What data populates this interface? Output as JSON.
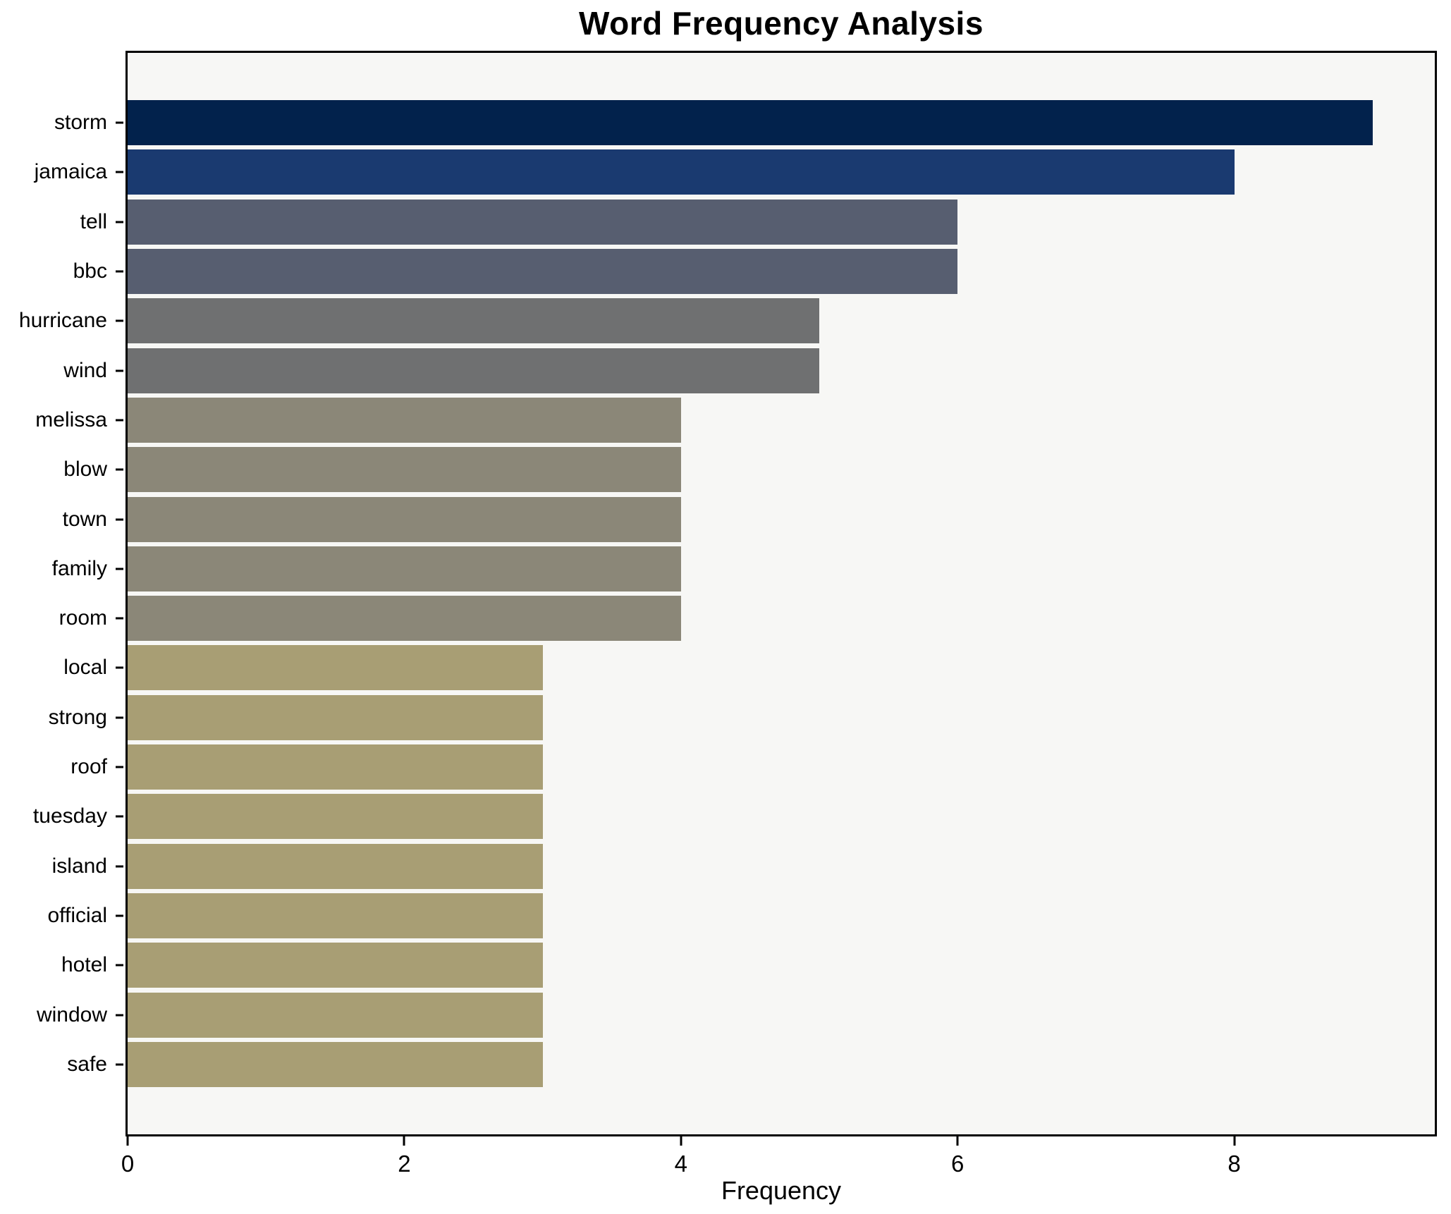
{
  "chart_data": {
    "type": "bar",
    "orientation": "horizontal",
    "title": "Word Frequency Analysis",
    "xlabel": "Frequency",
    "ylabel": "",
    "categories": [
      "storm",
      "jamaica",
      "tell",
      "bbc",
      "hurricane",
      "wind",
      "melissa",
      "blow",
      "town",
      "family",
      "room",
      "local",
      "strong",
      "roof",
      "tuesday",
      "island",
      "official",
      "hotel",
      "window",
      "safe"
    ],
    "values": [
      9,
      8,
      6,
      6,
      5,
      5,
      4,
      4,
      4,
      4,
      4,
      3,
      3,
      3,
      3,
      3,
      3,
      3,
      3,
      3
    ],
    "bar_colors": [
      "#02224c",
      "#1a3a70",
      "#575e70",
      "#575e70",
      "#6f7071",
      "#6f7071",
      "#8b8778",
      "#8b8778",
      "#8b8778",
      "#8b8778",
      "#8b8778",
      "#a89e74",
      "#a89e74",
      "#a89e74",
      "#a89e74",
      "#a89e74",
      "#a89e74",
      "#a89e74",
      "#a89e74",
      "#a89e74"
    ],
    "xlim": [
      0,
      9.45
    ],
    "xticks": [
      0,
      2,
      4,
      6,
      8
    ],
    "grid": false,
    "legend_position": "none",
    "plot_bg": "#f7f7f5",
    "figure_bg": "#ffffff",
    "spine_color": "#000000"
  }
}
